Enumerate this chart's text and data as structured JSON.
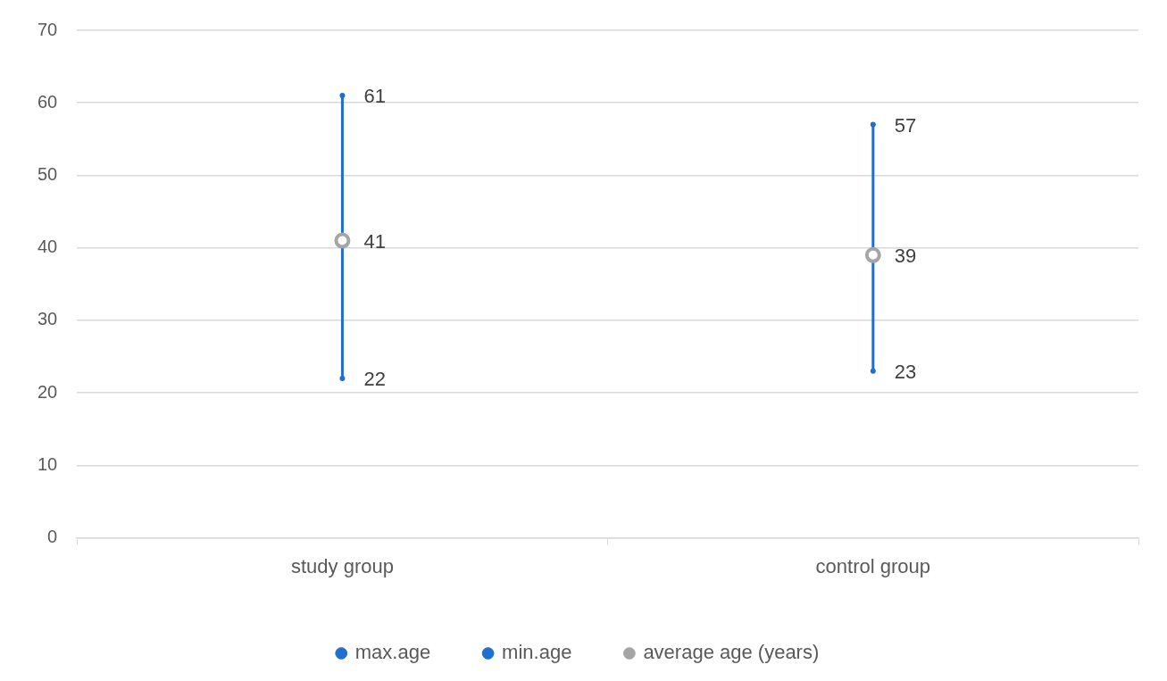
{
  "chart_data": {
    "type": "scatter",
    "categories": [
      "study group",
      "control group"
    ],
    "series": [
      {
        "name": "max.age",
        "color": "#1f6fd0",
        "values": [
          61,
          57
        ]
      },
      {
        "name": "min.age",
        "color": "#1f6fd0",
        "values": [
          22,
          23
        ]
      },
      {
        "name": "average age (years)",
        "color": "#a5a5a5",
        "values": [
          41,
          39
        ]
      }
    ],
    "ylim": [
      0,
      70
    ],
    "yticks": [
      0,
      10,
      20,
      30,
      40,
      50,
      60,
      70
    ],
    "grid": "y",
    "legend": "bottom",
    "data_labels": true
  }
}
